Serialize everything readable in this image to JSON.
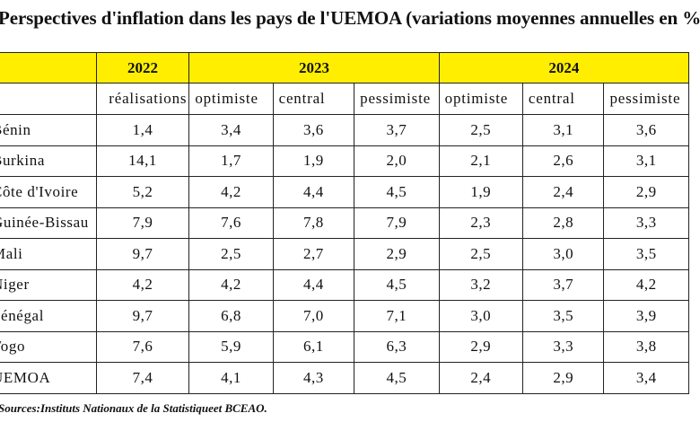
{
  "title": "Perspectives d'inflation dans les pays de l'UEMOA (variations moyennes annuelles en %)",
  "years": [
    "2022",
    "2023",
    "2024"
  ],
  "scenarios": [
    "réalisations",
    "optimiste",
    "central",
    "pessimiste",
    "optimiste",
    "central",
    "pessimiste"
  ],
  "rows": [
    {
      "country": "Bénin",
      "values": [
        "1,4",
        "3,4",
        "3,6",
        "3,7",
        "2,5",
        "3,1",
        "3,6"
      ]
    },
    {
      "country": "Burkina",
      "values": [
        "14,1",
        "1,7",
        "1,9",
        "2,0",
        "2,1",
        "2,6",
        "3,1"
      ]
    },
    {
      "country": "Côte d'Ivoire",
      "values": [
        "5,2",
        "4,2",
        "4,4",
        "4,5",
        "1,9",
        "2,4",
        "2,9"
      ]
    },
    {
      "country": "Guinée-Bissau",
      "values": [
        "7,9",
        "7,6",
        "7,8",
        "7,9",
        "2,3",
        "2,8",
        "3,3"
      ]
    },
    {
      "country": "Mali",
      "values": [
        "9,7",
        "2,5",
        "2,7",
        "2,9",
        "2,5",
        "3,0",
        "3,5"
      ]
    },
    {
      "country": "Niger",
      "values": [
        "4,2",
        "4,2",
        "4,4",
        "4,5",
        "3,2",
        "3,7",
        "4,2"
      ]
    },
    {
      "country": "Sénégal",
      "values": [
        "9,7",
        "6,8",
        "7,0",
        "7,1",
        "3,0",
        "3,5",
        "3,9"
      ]
    },
    {
      "country": "Togo",
      "values": [
        "7,6",
        "5,9",
        "6,1",
        "6,3",
        "2,9",
        "3,3",
        "3,8"
      ]
    },
    {
      "country": "UEMOA",
      "values": [
        "7,4",
        "4,1",
        "4,3",
        "4,5",
        "2,4",
        "2,9",
        "3,4"
      ]
    }
  ],
  "source": "Sources:Instituts Nationaux de la Statistiqueet BCEAO.",
  "colors": {
    "header_fill": "#ffee00",
    "border": "#222222"
  }
}
